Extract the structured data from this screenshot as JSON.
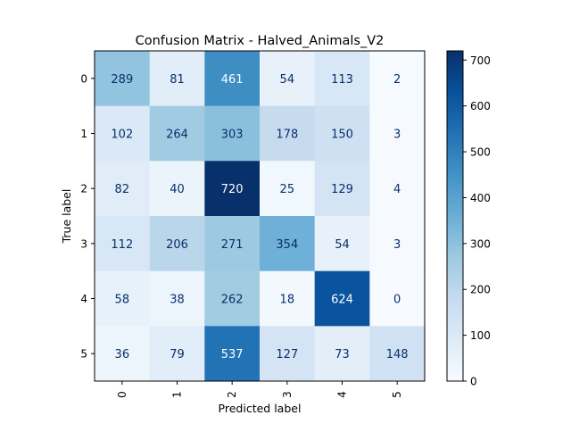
{
  "chart_data": {
    "type": "heatmap",
    "title": "Confusion Matrix - Halved_Animals_V2",
    "xlabel": "Predicted label",
    "ylabel": "True label",
    "x_categories": [
      "0",
      "1",
      "2",
      "3",
      "4",
      "5"
    ],
    "y_categories": [
      "0",
      "1",
      "2",
      "3",
      "4",
      "5"
    ],
    "values": [
      [
        289,
        81,
        461,
        54,
        113,
        2
      ],
      [
        102,
        264,
        303,
        178,
        150,
        3
      ],
      [
        82,
        40,
        720,
        25,
        129,
        4
      ],
      [
        112,
        206,
        271,
        354,
        54,
        3
      ],
      [
        58,
        38,
        262,
        18,
        624,
        0
      ],
      [
        36,
        79,
        537,
        127,
        73,
        148
      ]
    ],
    "colorbar": {
      "range": [
        0,
        720
      ],
      "ticks": [
        0,
        100,
        200,
        300,
        400,
        500,
        600,
        700
      ],
      "colormap": "Blues"
    },
    "text_color_light": "#ffffff",
    "text_color_dark": "#08306b"
  }
}
